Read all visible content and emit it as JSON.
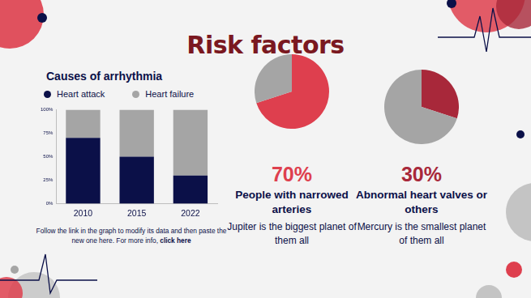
{
  "title": "Risk factors",
  "chart_data": [
    {
      "type": "bar",
      "title": "Causes of arrhythmia",
      "categories": [
        "2010",
        "2015",
        "2022"
      ],
      "series": [
        {
          "name": "Heart attack",
          "color": "#0b1048",
          "values": [
            70,
            50,
            30
          ]
        },
        {
          "name": "Heart failure",
          "color": "#a5a5a5",
          "values": [
            30,
            50,
            70
          ]
        }
      ],
      "stacked": true,
      "ylim": [
        0,
        100
      ],
      "yticks": [
        {
          "value": 0,
          "label": "0%"
        },
        {
          "value": 25,
          "label": "25%"
        },
        {
          "value": 50,
          "label": "50%"
        },
        {
          "value": 75,
          "label": "75%"
        },
        {
          "value": 100,
          "label": "100%"
        }
      ],
      "grid": false,
      "legend": "top"
    },
    {
      "type": "pie",
      "title": "People with narrowed arteries",
      "subtitle": "Jupiter is the biggest planet of them all",
      "annotations": [
        "70%"
      ],
      "values": [
        70,
        30
      ],
      "colors": [
        "#de3f4e",
        "#a5a5a5"
      ]
    },
    {
      "type": "pie",
      "title": "Abnormal heart valves or others",
      "subtitle": "Mercury is the smallest planet of them all",
      "annotations": [
        "30%"
      ],
      "values": [
        30,
        70
      ],
      "colors": [
        "#a8283a",
        "#a5a5a5"
      ]
    }
  ],
  "note": {
    "text": "Follow the link in the graph to modify its data and then paste the new one here. For more info,",
    "link": "click here"
  }
}
